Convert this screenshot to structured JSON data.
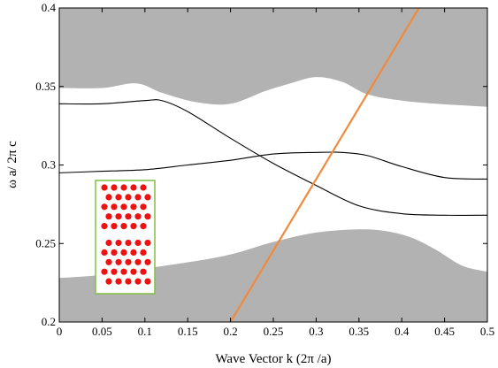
{
  "chart_data": {
    "type": "line",
    "xlabel": "Wave Vector k (2π /a)",
    "ylabel": "ω a/ 2π c",
    "xlim": [
      0,
      0.5
    ],
    "ylim": [
      0.2,
      0.4
    ],
    "xticks": [
      0,
      0.05,
      0.1,
      0.15,
      0.2,
      0.25,
      0.3,
      0.35,
      0.4,
      0.45,
      0.5
    ],
    "xtick_labels": [
      "0",
      "0.05",
      "0.1",
      "0.15",
      "0.2",
      "0.25",
      "0.3",
      "0.35",
      "0.4",
      "0.45",
      "0.5"
    ],
    "yticks": [
      0.2,
      0.25,
      0.3,
      0.35,
      0.4
    ],
    "ytick_labels": [
      "0.2",
      "0.25",
      "0.3",
      "0.35",
      "0.4"
    ],
    "grid": false,
    "colors": {
      "shaded_region": "#b2b2b2",
      "band_line": "#000000",
      "light_line": "#f08a3c",
      "inset_hole": "#ee1111",
      "inset_border": "#7fbf3f"
    },
    "shaded_upper_boundary": {
      "x": [
        0,
        0.05,
        0.09,
        0.12,
        0.16,
        0.2,
        0.24,
        0.27,
        0.3,
        0.33,
        0.36,
        0.4,
        0.44,
        0.47,
        0.5
      ],
      "y": [
        0.349,
        0.349,
        0.352,
        0.346,
        0.34,
        0.339,
        0.347,
        0.352,
        0.356,
        0.353,
        0.345,
        0.341,
        0.339,
        0.338,
        0.337
      ]
    },
    "shaded_lower_boundary": {
      "x": [
        0,
        0.05,
        0.1,
        0.15,
        0.2,
        0.25,
        0.3,
        0.35,
        0.38,
        0.41,
        0.44,
        0.47,
        0.5
      ],
      "y": [
        0.228,
        0.23,
        0.234,
        0.238,
        0.243,
        0.251,
        0.257,
        0.259,
        0.258,
        0.254,
        0.246,
        0.236,
        0.232
      ]
    },
    "series": [
      {
        "x": [
          0,
          0.05,
          0.1,
          0.12,
          0.15,
          0.2,
          0.25,
          0.3,
          0.35,
          0.4,
          0.45,
          0.5
        ],
        "y": [
          0.339,
          0.339,
          0.341,
          0.341,
          0.334,
          0.317,
          0.301,
          0.287,
          0.274,
          0.269,
          0.268,
          0.268
        ]
      },
      {
        "x": [
          0,
          0.05,
          0.1,
          0.15,
          0.2,
          0.25,
          0.3,
          0.33,
          0.36,
          0.4,
          0.45,
          0.5
        ],
        "y": [
          0.295,
          0.296,
          0.297,
          0.3,
          0.303,
          0.307,
          0.308,
          0.308,
          0.306,
          0.299,
          0.292,
          0.291
        ]
      },
      {
        "x": [
          0.2,
          0.42
        ],
        "y": [
          0.2,
          0.4
        ]
      }
    ],
    "inset": {
      "position": "left-center",
      "rows": 10,
      "cols": 5
    }
  }
}
